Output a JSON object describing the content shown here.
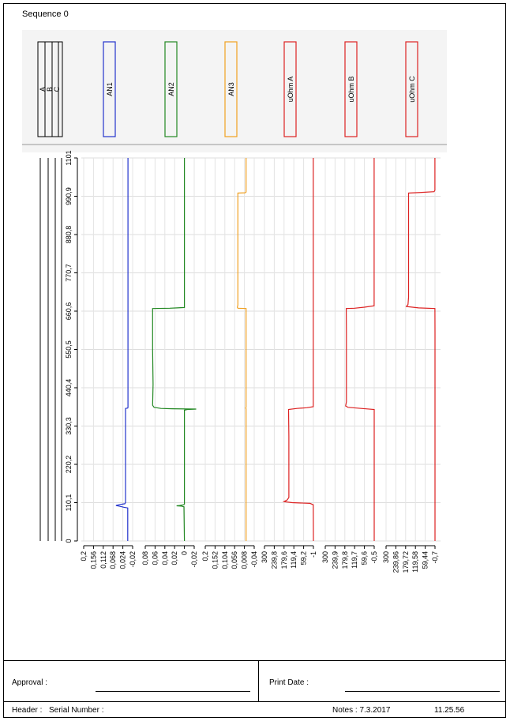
{
  "page": {
    "title": "Sequence 0"
  },
  "chart_data": {
    "type": "line",
    "orientation": "vertical-time",
    "y_axis": {
      "ticks": [
        "0",
        "110,1",
        "220,2",
        "330,3",
        "440,4",
        "550,5",
        "660,6",
        "770,7",
        "880,8",
        "990,9",
        "1101"
      ],
      "range": [
        0,
        1101
      ]
    },
    "digital_channels": [
      "A",
      "B",
      "C"
    ],
    "series": [
      {
        "name": "AN1",
        "color": "#2233cc",
        "ticks": [
          "0,2",
          "0,156",
          "0,112",
          "0,068",
          "0,024",
          "-0,02"
        ],
        "range": [
          0.2,
          -0.02
        ],
        "points": [
          [
            0,
            0.002
          ],
          [
            95,
            0.002
          ],
          [
            97,
            0.02
          ],
          [
            100,
            0.04
          ],
          [
            102,
            0.055
          ],
          [
            105,
            0.034
          ],
          [
            107,
            0.015
          ],
          [
            110,
            0.012
          ],
          [
            200,
            0.012
          ],
          [
            300,
            0.012
          ],
          [
            360,
            0.012
          ],
          [
            377,
            0.012
          ],
          [
            381,
            0.012
          ],
          [
            382,
            0.002
          ],
          [
            384,
            0.001
          ],
          [
            640,
            0.001
          ],
          [
            650,
            0.001
          ],
          [
            700,
            0.001
          ],
          [
            750,
            0.001
          ],
          [
            990,
            0.001
          ],
          [
            1101,
            0.001
          ]
        ]
      },
      {
        "name": "AN2",
        "color": "#228822",
        "ticks": [
          "0,08",
          "0,06",
          "0,04",
          "0,02",
          "0",
          "-0,02"
        ],
        "range": [
          0.08,
          -0.02
        ],
        "points": [
          [
            0,
            0.0
          ],
          [
            98,
            0.001
          ],
          [
            100,
            0.006
          ],
          [
            101,
            0.016
          ],
          [
            102,
            0.01
          ],
          [
            104,
            0.002
          ],
          [
            106,
            0.0
          ],
          [
            200,
            0.0
          ],
          [
            300,
            0.0
          ],
          [
            376,
            0.0
          ],
          [
            378,
            -0.006
          ],
          [
            379,
            -0.024
          ],
          [
            380,
            0.025
          ],
          [
            381,
            0.048
          ],
          [
            384,
            0.062
          ],
          [
            390,
            0.065
          ],
          [
            450,
            0.064
          ],
          [
            550,
            0.065
          ],
          [
            640,
            0.065
          ],
          [
            660,
            0.065
          ],
          [
            668,
            0.065
          ],
          [
            669,
            0.03
          ],
          [
            670,
            0.015
          ],
          [
            671,
            0.0
          ],
          [
            700,
            0.0
          ],
          [
            990,
            0.0
          ],
          [
            1101,
            0.0
          ]
        ]
      },
      {
        "name": "AN3",
        "color": "#f0a020",
        "ticks": [
          "0,2",
          "0,152",
          "0,104",
          "0,056",
          "0,008",
          "-0,04"
        ],
        "range": [
          0.2,
          -0.04
        ],
        "points": [
          [
            0,
            0.0
          ],
          [
            380,
            0.0
          ],
          [
            382,
            0.002
          ],
          [
            384,
            0.0
          ],
          [
            660,
            0.0
          ],
          [
            668,
            0.0
          ],
          [
            669,
            0.04
          ],
          [
            672,
            0.043
          ],
          [
            678,
            0.04
          ],
          [
            680,
            0.04
          ],
          [
            900,
            0.04
          ],
          [
            990,
            0.04
          ],
          [
            1000,
            0.04
          ],
          [
            1001,
            0.005
          ],
          [
            1003,
            0.0
          ],
          [
            1101,
            0.0
          ]
        ]
      },
      {
        "name": "uOhm A",
        "color": "#dd2222",
        "ticks": [
          "300",
          "239,8",
          "179,6",
          "119,4",
          "59,2",
          "-1"
        ],
        "range": [
          300,
          -1
        ],
        "points": [
          [
            0,
            -1
          ],
          [
            104,
            0
          ],
          [
            108,
            20
          ],
          [
            110,
            130
          ],
          [
            113,
            180
          ],
          [
            118,
            160
          ],
          [
            125,
            150
          ],
          [
            200,
            150
          ],
          [
            300,
            150
          ],
          [
            378,
            152
          ],
          [
            381,
            100
          ],
          [
            383,
            40
          ],
          [
            386,
            0
          ],
          [
            500,
            0
          ],
          [
            700,
            0
          ],
          [
            990,
            0
          ],
          [
            1101,
            0
          ]
        ]
      },
      {
        "name": "uOhm B",
        "color": "#dd2222",
        "ticks": [
          "300",
          "239,9",
          "179,8",
          "119,7",
          "59,6",
          "-0,5"
        ],
        "range": [
          300,
          -0.5
        ],
        "points": [
          [
            0,
            -0.5
          ],
          [
            378,
            -0.5
          ],
          [
            381,
            80
          ],
          [
            384,
            160
          ],
          [
            388,
            175
          ],
          [
            400,
            170
          ],
          [
            500,
            170
          ],
          [
            600,
            170
          ],
          [
            660,
            171
          ],
          [
            668,
            171
          ],
          [
            669,
            120
          ],
          [
            672,
            60
          ],
          [
            676,
            0
          ],
          [
            700,
            0
          ],
          [
            990,
            0
          ],
          [
            1101,
            0
          ]
        ]
      },
      {
        "name": "uOhm C",
        "color": "#dd2222",
        "ticks": [
          "300",
          "239,86",
          "179,72",
          "119,58",
          "59,44",
          "-0,7"
        ],
        "range": [
          300,
          -0.7
        ],
        "points": [
          [
            0,
            -0.7
          ],
          [
            600,
            -0.7
          ],
          [
            668,
            0
          ],
          [
            670,
            100
          ],
          [
            674,
            175
          ],
          [
            680,
            165
          ],
          [
            700,
            162
          ],
          [
            900,
            162
          ],
          [
            990,
            162
          ],
          [
            1000,
            162
          ],
          [
            1002,
            80
          ],
          [
            1004,
            5
          ],
          [
            1008,
            0
          ],
          [
            1101,
            0
          ]
        ]
      }
    ]
  },
  "footer": {
    "approval_label": "Approval :",
    "print_date_label": "Print Date :",
    "header_label": "Header :",
    "serial_label": "Serial Number :",
    "notes_label": "Notes : 7.3.2017",
    "time": "11.25.56"
  }
}
